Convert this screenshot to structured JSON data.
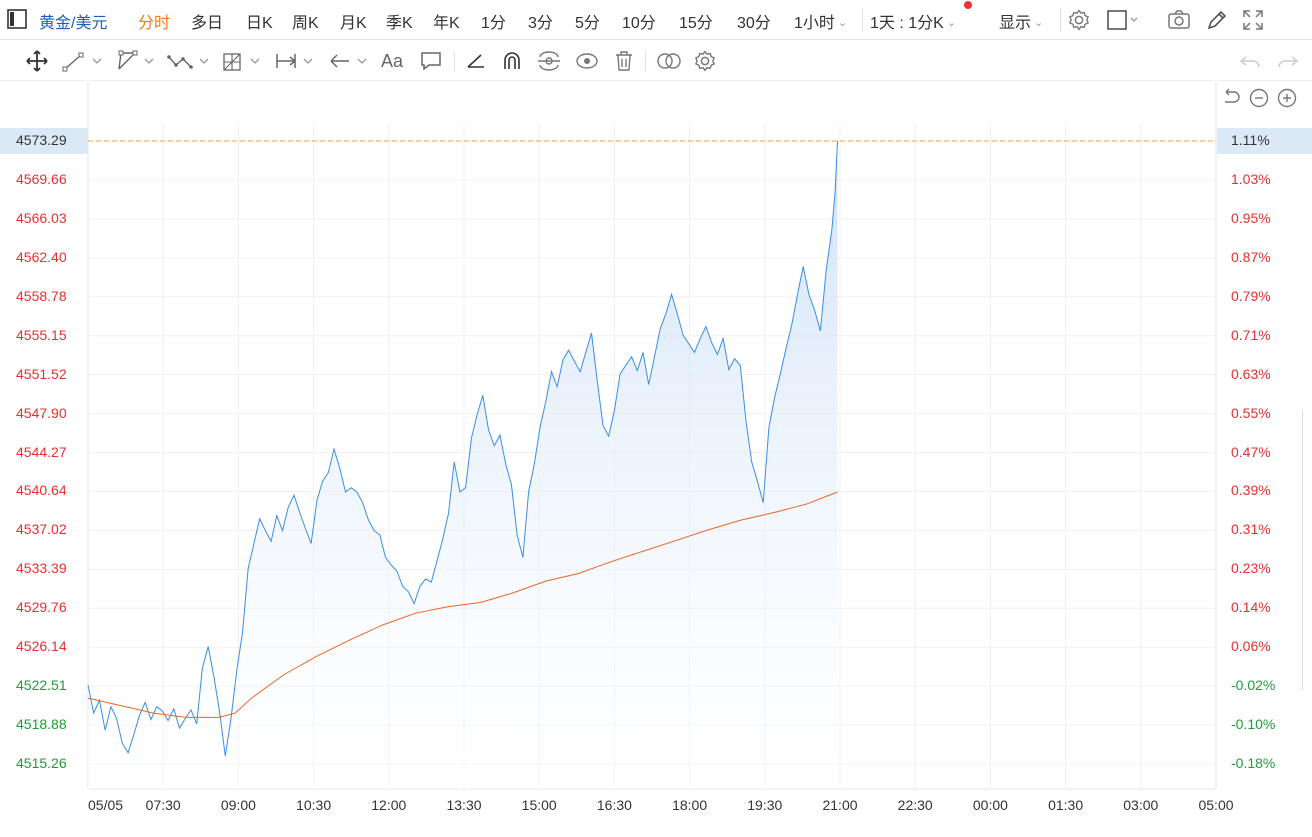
{
  "header": {
    "symbol": "黄金/美元",
    "tabs": [
      "分时",
      "多日",
      "日K",
      "周K",
      "月K",
      "季K",
      "年K",
      "1分",
      "3分",
      "5分",
      "10分",
      "15分",
      "30分",
      "1小时"
    ],
    "active_tab": "分时",
    "compare_label": "1天 : 1分K",
    "display_label": "显示"
  },
  "icons": {
    "sidebar_toggle": "sidebar-toggle-icon",
    "settings": "gear-icon",
    "layout": "layout-square-icon",
    "camera": "camera-icon",
    "pen": "pen-icon",
    "fullscreen": "fullscreen-icon"
  },
  "colors": {
    "price_line": "#3a8ee6",
    "fill_top": "#c9def7",
    "average_line": "#e8662b",
    "up": "#e63030",
    "down": "#1f9c3a",
    "highlight": "#dbe9f7",
    "price_marker": "#f0a040"
  },
  "chart_data": {
    "type": "line",
    "date_label": "05/05",
    "x_tick_labels": [
      "05/05",
      "07:30",
      "09:00",
      "10:30",
      "12:00",
      "13:30",
      "15:00",
      "16:30",
      "18:00",
      "19:30",
      "21:00",
      "22:30",
      "00:00",
      "01:30",
      "03:00",
      "05:00"
    ],
    "y_left_ticks": [
      "4573.29",
      "4569.66",
      "4566.03",
      "4562.40",
      "4558.78",
      "4555.15",
      "4551.52",
      "4547.90",
      "4544.27",
      "4540.64",
      "4537.02",
      "4533.39",
      "4529.76",
      "4526.14",
      "4522.51",
      "4518.88",
      "4515.26"
    ],
    "y_right_ticks": [
      "1.11%",
      "1.03%",
      "0.95%",
      "0.87%",
      "0.79%",
      "0.71%",
      "0.63%",
      "0.55%",
      "0.47%",
      "0.39%",
      "0.31%",
      "0.23%",
      "0.14%",
      "0.06%",
      "-0.02%",
      "-0.10%",
      "-0.18%"
    ],
    "current_price": "4573.29",
    "current_change": "1.11%",
    "ylim": [
      4515.26,
      4573.29
    ],
    "x_minutes_range": [
      360,
      1740
    ],
    "series": [
      {
        "name": "",
        "points": [
          [
            360,
            4522.6
          ],
          [
            367,
            4520.0
          ],
          [
            374,
            4521.2
          ],
          [
            381,
            4518.4
          ],
          [
            388,
            4520.6
          ],
          [
            395,
            4519.5
          ],
          [
            402,
            4517.2
          ],
          [
            409,
            4516.3
          ],
          [
            416,
            4518.0
          ],
          [
            423,
            4519.8
          ],
          [
            430,
            4521.0
          ],
          [
            437,
            4519.4
          ],
          [
            444,
            4520.6
          ],
          [
            451,
            4520.2
          ],
          [
            458,
            4519.3
          ],
          [
            465,
            4520.4
          ],
          [
            472,
            4518.6
          ],
          [
            479,
            4519.5
          ],
          [
            486,
            4520.3
          ],
          [
            493,
            4519.0
          ],
          [
            500,
            4524.2
          ],
          [
            507,
            4526.2
          ],
          [
            514,
            4523.4
          ],
          [
            521,
            4520.1
          ],
          [
            528,
            4516.0
          ],
          [
            535,
            4519.5
          ],
          [
            542,
            4524.0
          ],
          [
            549,
            4527.5
          ],
          [
            556,
            4533.5
          ],
          [
            563,
            4535.8
          ],
          [
            570,
            4538.1
          ],
          [
            577,
            4537.0
          ],
          [
            584,
            4536.0
          ],
          [
            591,
            4538.4
          ],
          [
            598,
            4537.0
          ],
          [
            605,
            4539.2
          ],
          [
            612,
            4540.3
          ],
          [
            619,
            4538.7
          ],
          [
            626,
            4537.2
          ],
          [
            633,
            4535.8
          ],
          [
            640,
            4539.8
          ],
          [
            647,
            4541.6
          ],
          [
            654,
            4542.4
          ],
          [
            661,
            4544.6
          ],
          [
            668,
            4542.8
          ],
          [
            675,
            4540.6
          ],
          [
            682,
            4541.0
          ],
          [
            689,
            4540.6
          ],
          [
            696,
            4539.6
          ],
          [
            703,
            4538.0
          ],
          [
            710,
            4537.0
          ],
          [
            717,
            4536.6
          ],
          [
            724,
            4534.5
          ],
          [
            731,
            4533.8
          ],
          [
            738,
            4533.2
          ],
          [
            745,
            4531.8
          ],
          [
            752,
            4531.3
          ],
          [
            759,
            4530.2
          ],
          [
            766,
            4531.8
          ],
          [
            773,
            4532.5
          ],
          [
            780,
            4532.2
          ],
          [
            787,
            4534.2
          ],
          [
            794,
            4536.2
          ],
          [
            801,
            4538.6
          ],
          [
            808,
            4543.4
          ],
          [
            815,
            4540.6
          ],
          [
            822,
            4541.0
          ],
          [
            829,
            4545.6
          ],
          [
            836,
            4547.8
          ],
          [
            843,
            4549.6
          ],
          [
            850,
            4546.4
          ],
          [
            857,
            4544.9
          ],
          [
            864,
            4545.9
          ],
          [
            871,
            4543.2
          ],
          [
            878,
            4541.3
          ],
          [
            885,
            4536.6
          ],
          [
            892,
            4534.5
          ],
          [
            899,
            4540.6
          ],
          [
            906,
            4543.2
          ],
          [
            913,
            4546.6
          ],
          [
            920,
            4549.0
          ],
          [
            927,
            4551.8
          ],
          [
            934,
            4550.4
          ],
          [
            941,
            4552.9
          ],
          [
            948,
            4553.8
          ],
          [
            955,
            4552.8
          ],
          [
            962,
            4551.8
          ],
          [
            969,
            4553.6
          ],
          [
            976,
            4555.4
          ],
          [
            983,
            4551.0
          ],
          [
            990,
            4546.8
          ],
          [
            997,
            4545.8
          ],
          [
            1004,
            4548.2
          ],
          [
            1011,
            4551.6
          ],
          [
            1018,
            4552.4
          ],
          [
            1025,
            4553.2
          ],
          [
            1032,
            4551.9
          ],
          [
            1039,
            4553.6
          ],
          [
            1046,
            4550.6
          ],
          [
            1053,
            4553.2
          ],
          [
            1060,
            4555.8
          ],
          [
            1067,
            4557.2
          ],
          [
            1074,
            4559.0
          ],
          [
            1081,
            4557.2
          ],
          [
            1088,
            4555.2
          ],
          [
            1095,
            4554.4
          ],
          [
            1102,
            4553.6
          ],
          [
            1109,
            4554.9
          ],
          [
            1116,
            4556.0
          ],
          [
            1123,
            4554.5
          ],
          [
            1130,
            4553.4
          ],
          [
            1137,
            4554.9
          ],
          [
            1144,
            4552.0
          ],
          [
            1151,
            4553.0
          ],
          [
            1158,
            4552.4
          ],
          [
            1165,
            4547.2
          ],
          [
            1172,
            4543.4
          ],
          [
            1179,
            4541.6
          ],
          [
            1186,
            4539.6
          ],
          [
            1193,
            4546.6
          ],
          [
            1200,
            4549.4
          ],
          [
            1207,
            4551.6
          ],
          [
            1214,
            4554.0
          ],
          [
            1221,
            4556.2
          ],
          [
            1228,
            4559.0
          ],
          [
            1235,
            4561.6
          ],
          [
            1242,
            4559.0
          ],
          [
            1249,
            4557.5
          ],
          [
            1256,
            4555.6
          ],
          [
            1263,
            4561.2
          ],
          [
            1270,
            4565.0
          ],
          [
            1274,
            4568.5
          ],
          [
            1277,
            4573.29
          ]
        ]
      },
      {
        "name": "",
        "points": [
          [
            360,
            4521.4
          ],
          [
            400,
            4520.7
          ],
          [
            440,
            4520.0
          ],
          [
            480,
            4519.6
          ],
          [
            520,
            4519.6
          ],
          [
            540,
            4520.0
          ],
          [
            560,
            4521.4
          ],
          [
            600,
            4523.6
          ],
          [
            640,
            4525.3
          ],
          [
            680,
            4526.8
          ],
          [
            720,
            4528.2
          ],
          [
            760,
            4529.3
          ],
          [
            800,
            4529.9
          ],
          [
            840,
            4530.3
          ],
          [
            880,
            4531.2
          ],
          [
            920,
            4532.3
          ],
          [
            960,
            4533.0
          ],
          [
            1000,
            4534.1
          ],
          [
            1040,
            4535.1
          ],
          [
            1080,
            4536.1
          ],
          [
            1120,
            4537.1
          ],
          [
            1160,
            4538.0
          ],
          [
            1200,
            4538.7
          ],
          [
            1240,
            4539.5
          ],
          [
            1277,
            4540.6
          ]
        ]
      }
    ],
    "grid": true
  }
}
